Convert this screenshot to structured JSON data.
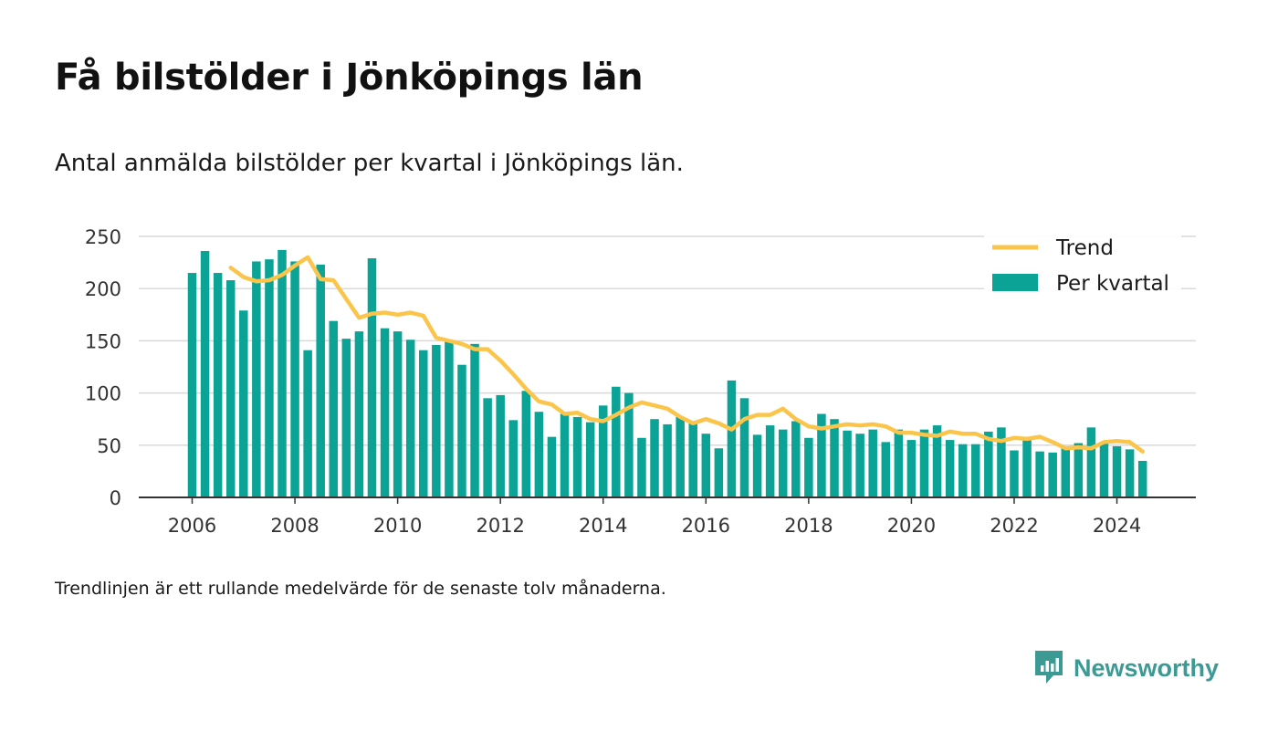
{
  "title": "Få bilstölder i Jönköpings län",
  "subtitle": "Antal anmälda bilstölder per kvartal i Jönköpings län.",
  "note": "Trendlinjen är ett rullande medelvärde för de senaste tolv månaderna.",
  "brand": {
    "name": "Newsworthy",
    "color": "#3b9a94"
  },
  "chart_data": {
    "type": "bar",
    "ylim": [
      0,
      250
    ],
    "yticks": [
      0,
      50,
      100,
      150,
      200,
      250
    ],
    "xticks": [
      "2006",
      "2008",
      "2010",
      "2012",
      "2014",
      "2016",
      "2018",
      "2020",
      "2022",
      "2024"
    ],
    "grid": true,
    "legend_position": "top-right",
    "colors": {
      "bars": "#0ba396",
      "trend": "#fbc54b",
      "grid": "#d9d9d9",
      "axis": "#333333"
    },
    "categories": [
      "2006 Q1",
      "2006 Q2",
      "2006 Q3",
      "2006 Q4",
      "2007 Q1",
      "2007 Q2",
      "2007 Q3",
      "2007 Q4",
      "2008 Q1",
      "2008 Q2",
      "2008 Q3",
      "2008 Q4",
      "2009 Q1",
      "2009 Q2",
      "2009 Q3",
      "2009 Q4",
      "2010 Q1",
      "2010 Q2",
      "2010 Q3",
      "2010 Q4",
      "2011 Q1",
      "2011 Q2",
      "2011 Q3",
      "2011 Q4",
      "2012 Q1",
      "2012 Q2",
      "2012 Q3",
      "2012 Q4",
      "2013 Q1",
      "2013 Q2",
      "2013 Q3",
      "2013 Q4",
      "2014 Q1",
      "2014 Q2",
      "2014 Q3",
      "2014 Q4",
      "2015 Q1",
      "2015 Q2",
      "2015 Q3",
      "2015 Q4",
      "2016 Q1",
      "2016 Q2",
      "2016 Q3",
      "2016 Q4",
      "2017 Q1",
      "2017 Q2",
      "2017 Q3",
      "2017 Q4",
      "2018 Q1",
      "2018 Q2",
      "2018 Q3",
      "2018 Q4",
      "2019 Q1",
      "2019 Q2",
      "2019 Q3",
      "2019 Q4",
      "2020 Q1",
      "2020 Q2",
      "2020 Q3",
      "2020 Q4",
      "2021 Q1",
      "2021 Q2",
      "2021 Q3",
      "2021 Q4",
      "2022 Q1",
      "2022 Q2",
      "2022 Q3",
      "2022 Q4",
      "2023 Q1",
      "2023 Q2",
      "2023 Q3",
      "2023 Q4",
      "2024 Q1",
      "2024 Q2",
      "2024 Q3"
    ],
    "series": [
      {
        "name": "Per kvartal",
        "type": "bar",
        "values": [
          215,
          236,
          215,
          208,
          179,
          226,
          228,
          237,
          226,
          141,
          223,
          169,
          152,
          159,
          229,
          162,
          159,
          151,
          141,
          146,
          150,
          127,
          147,
          95,
          98,
          74,
          102,
          82,
          58,
          80,
          77,
          72,
          88,
          106,
          100,
          57,
          75,
          70,
          77,
          73,
          61,
          47,
          112,
          95,
          60,
          69,
          65,
          73,
          57,
          80,
          75,
          64,
          61,
          65,
          53,
          65,
          55,
          65,
          69,
          55,
          51,
          51,
          63,
          67,
          45,
          57,
          44,
          43,
          47,
          52,
          67,
          52,
          49,
          46,
          35
        ]
      },
      {
        "name": "Trend",
        "type": "line",
        "values": [
          null,
          null,
          null,
          220,
          211,
          207,
          208,
          213,
          222,
          230,
          209,
          208,
          190,
          172,
          176,
          177,
          175,
          177,
          174,
          153,
          150,
          147,
          142,
          142,
          131,
          118,
          104,
          92,
          89,
          80,
          81,
          75,
          73,
          79,
          86,
          91,
          88,
          85,
          77,
          71,
          75,
          71,
          65,
          75,
          79,
          79,
          85,
          75,
          68,
          66,
          68,
          70,
          69,
          70,
          68,
          62,
          62,
          60,
          59,
          63,
          61,
          61,
          56,
          54,
          57,
          56,
          58,
          53,
          47,
          48,
          47,
          53,
          54,
          53,
          44
        ]
      }
    ]
  }
}
